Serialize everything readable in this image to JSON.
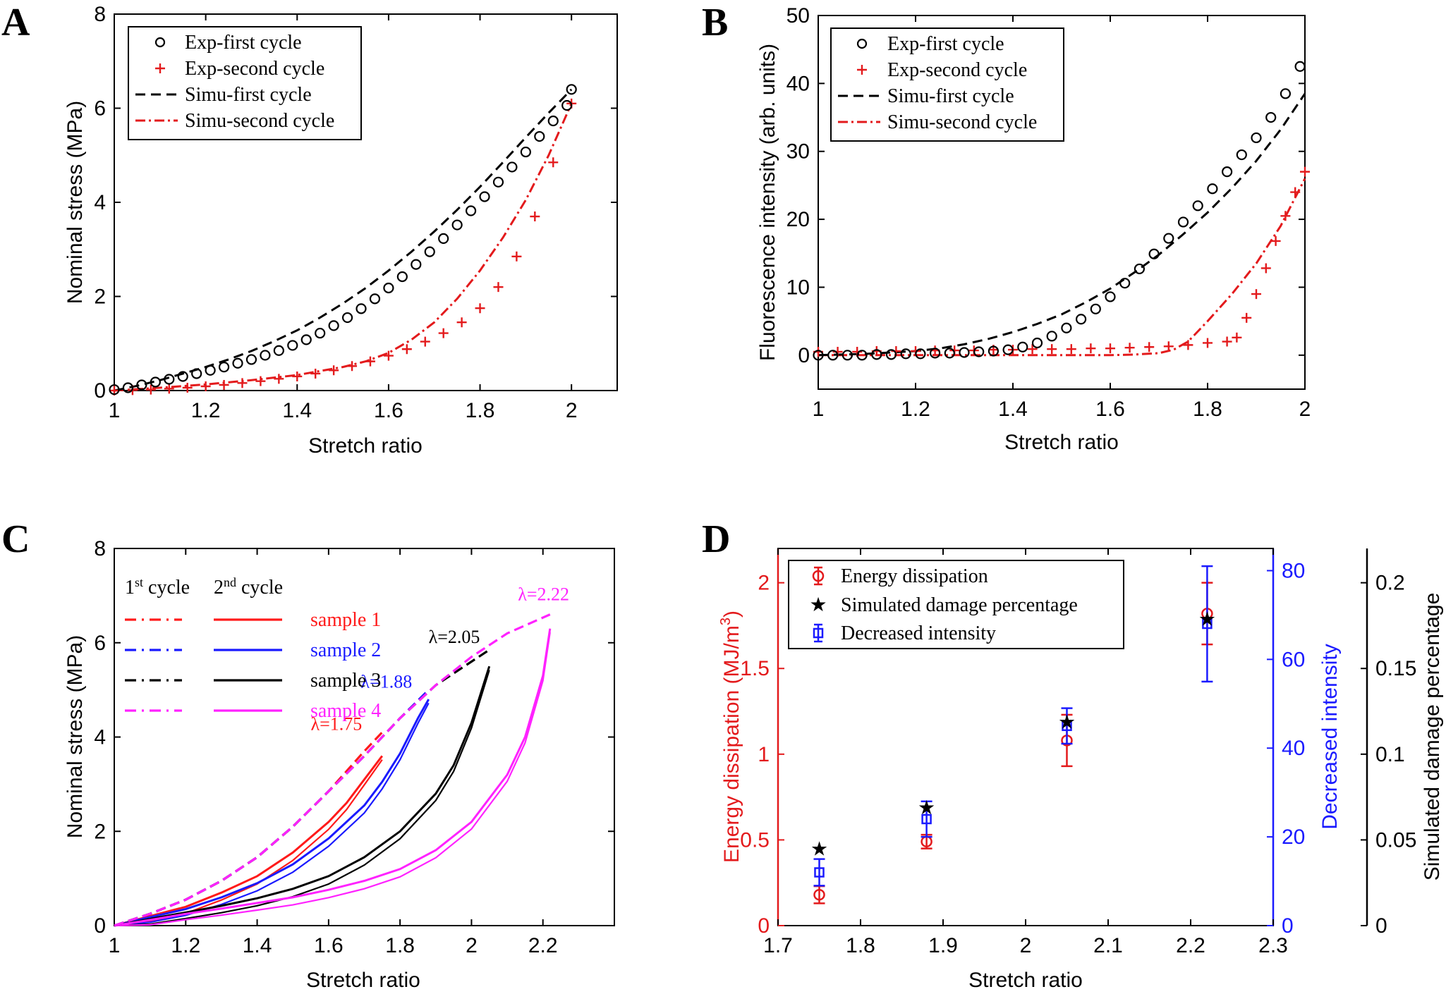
{
  "chart_data": [
    {
      "panel": "A",
      "type": "line",
      "xlabel": "Stretch ratio",
      "ylabel": "Nominal stress (MPa)",
      "xlim": [
        1,
        2.1
      ],
      "ylim": [
        0,
        8
      ],
      "xticks": [
        1,
        1.2,
        1.4,
        1.6,
        1.8,
        2
      ],
      "yticks": [
        0,
        2,
        4,
        6,
        8
      ],
      "xtick_labels": [
        "1",
        "1.2",
        "1.4",
        "1.6",
        "1.8",
        "2"
      ],
      "ytick_labels": [
        "0",
        "2",
        "4",
        "6",
        "8"
      ],
      "legend": [
        "Exp-first cycle",
        "Exp-second cycle",
        "Simu-first cycle",
        "Simu-second cycle"
      ],
      "series": [
        {
          "name": "Exp-first cycle",
          "style": "circle",
          "color": "#000000",
          "x": [
            1.0,
            1.03,
            1.06,
            1.09,
            1.12,
            1.15,
            1.18,
            1.21,
            1.24,
            1.27,
            1.3,
            1.33,
            1.36,
            1.39,
            1.42,
            1.45,
            1.48,
            1.51,
            1.54,
            1.57,
            1.6,
            1.63,
            1.66,
            1.69,
            1.72,
            1.75,
            1.78,
            1.81,
            1.84,
            1.87,
            1.9,
            1.93,
            1.96,
            1.99,
            2.0
          ],
          "y": [
            0.02,
            0.06,
            0.12,
            0.18,
            0.24,
            0.3,
            0.36,
            0.43,
            0.5,
            0.58,
            0.66,
            0.75,
            0.85,
            0.96,
            1.08,
            1.22,
            1.38,
            1.55,
            1.74,
            1.95,
            2.18,
            2.42,
            2.68,
            2.95,
            3.23,
            3.52,
            3.82,
            4.12,
            4.43,
            4.75,
            5.07,
            5.4,
            5.73,
            6.06,
            6.4
          ]
        },
        {
          "name": "Exp-second cycle",
          "style": "plus",
          "color": "#e31a1c",
          "x": [
            1.0,
            1.04,
            1.08,
            1.12,
            1.16,
            1.2,
            1.24,
            1.28,
            1.32,
            1.36,
            1.4,
            1.44,
            1.48,
            1.52,
            1.56,
            1.6,
            1.64,
            1.68,
            1.72,
            1.76,
            1.8,
            1.84,
            1.88,
            1.92,
            1.96,
            2.0
          ],
          "y": [
            0.0,
            0.01,
            0.02,
            0.04,
            0.06,
            0.09,
            0.12,
            0.16,
            0.2,
            0.25,
            0.3,
            0.36,
            0.43,
            0.52,
            0.62,
            0.74,
            0.88,
            1.04,
            1.22,
            1.45,
            1.75,
            2.2,
            2.85,
            3.7,
            4.85,
            6.1
          ]
        },
        {
          "name": "Simu-first cycle",
          "style": "dash",
          "color": "#000000",
          "x": [
            1.0,
            1.05,
            1.1,
            1.15,
            1.2,
            1.25,
            1.3,
            1.35,
            1.4,
            1.45,
            1.5,
            1.55,
            1.6,
            1.65,
            1.7,
            1.75,
            1.8,
            1.85,
            1.9,
            1.95,
            2.0
          ],
          "y": [
            0.0,
            0.1,
            0.22,
            0.36,
            0.5,
            0.66,
            0.84,
            1.05,
            1.28,
            1.55,
            1.85,
            2.18,
            2.55,
            2.95,
            3.38,
            3.84,
            4.33,
            4.85,
            5.38,
            5.9,
            6.4
          ]
        },
        {
          "name": "Simu-second cycle",
          "style": "dashdot",
          "color": "#e31a1c",
          "x": [
            1.0,
            1.1,
            1.2,
            1.3,
            1.4,
            1.5,
            1.55,
            1.6,
            1.65,
            1.7,
            1.75,
            1.8,
            1.85,
            1.9,
            1.95,
            2.0
          ],
          "y": [
            0.0,
            0.06,
            0.13,
            0.22,
            0.33,
            0.5,
            0.62,
            0.8,
            1.08,
            1.45,
            1.95,
            2.55,
            3.25,
            4.05,
            5.0,
            6.1
          ]
        }
      ]
    },
    {
      "panel": "B",
      "type": "line",
      "xlabel": "Stretch ratio",
      "ylabel": "Fluorescence intensity (arb. units)",
      "xlim": [
        1,
        2
      ],
      "ylim": [
        -5,
        50
      ],
      "xticks": [
        1,
        1.2,
        1.4,
        1.6,
        1.8,
        2
      ],
      "yticks": [
        0,
        10,
        20,
        30,
        40,
        50
      ],
      "xtick_labels": [
        "1",
        "1.2",
        "1.4",
        "1.6",
        "1.8",
        "2"
      ],
      "ytick_labels": [
        "0",
        "10",
        "20",
        "30",
        "40",
        "50"
      ],
      "legend": [
        "Exp-first cycle",
        "Exp-second cycle",
        "Simu-first cycle",
        "Simu-second cycle"
      ],
      "series": [
        {
          "name": "Exp-first cycle",
          "style": "circle",
          "color": "#000000",
          "x": [
            1.0,
            1.03,
            1.06,
            1.09,
            1.12,
            1.15,
            1.18,
            1.21,
            1.24,
            1.27,
            1.3,
            1.33,
            1.36,
            1.39,
            1.42,
            1.45,
            1.48,
            1.51,
            1.54,
            1.57,
            1.6,
            1.63,
            1.66,
            1.69,
            1.72,
            1.75,
            1.78,
            1.81,
            1.84,
            1.87,
            1.9,
            1.93,
            1.96,
            1.99
          ],
          "y": [
            0,
            0,
            0,
            0,
            0.1,
            0.1,
            0.2,
            0.2,
            0.3,
            0.3,
            0.4,
            0.5,
            0.6,
            0.8,
            1.2,
            1.8,
            2.8,
            4.0,
            5.3,
            6.8,
            8.6,
            10.6,
            12.7,
            14.9,
            17.2,
            19.6,
            22.0,
            24.5,
            27.0,
            29.5,
            32.0,
            35.0,
            38.5,
            42.5
          ]
        },
        {
          "name": "Exp-second cycle",
          "style": "plus",
          "color": "#e31a1c",
          "x": [
            1.0,
            1.04,
            1.08,
            1.12,
            1.16,
            1.2,
            1.24,
            1.28,
            1.32,
            1.36,
            1.4,
            1.44,
            1.48,
            1.52,
            1.56,
            1.6,
            1.64,
            1.68,
            1.72,
            1.76,
            1.8,
            1.84,
            1.86,
            1.88,
            1.9,
            1.92,
            1.94,
            1.96,
            1.98,
            2.0
          ],
          "y": [
            0.5,
            0.5,
            0.5,
            0.6,
            0.6,
            0.6,
            0.7,
            0.7,
            0.7,
            0.8,
            0.8,
            0.9,
            0.9,
            0.9,
            1.0,
            1.0,
            1.1,
            1.2,
            1.3,
            1.5,
            1.8,
            2.0,
            2.6,
            5.5,
            9.0,
            12.8,
            16.8,
            20.5,
            24.0,
            27.0
          ]
        },
        {
          "name": "Simu-first cycle",
          "style": "dash",
          "color": "#000000",
          "x": [
            1.0,
            1.1,
            1.2,
            1.25,
            1.3,
            1.35,
            1.4,
            1.45,
            1.5,
            1.55,
            1.6,
            1.65,
            1.7,
            1.75,
            1.8,
            1.85,
            1.9,
            1.95,
            2.0
          ],
          "y": [
            0,
            0.2,
            0.6,
            1.0,
            1.6,
            2.4,
            3.4,
            4.6,
            6.0,
            7.8,
            9.8,
            12.2,
            14.8,
            17.8,
            21.0,
            24.6,
            28.6,
            33.2,
            38.5
          ]
        },
        {
          "name": "Simu-second cycle",
          "style": "dashdot",
          "color": "#e31a1c",
          "x": [
            1.0,
            1.2,
            1.4,
            1.6,
            1.65,
            1.7,
            1.73,
            1.76,
            1.8,
            1.85,
            1.9,
            1.95,
            2.0
          ],
          "y": [
            0,
            0,
            0,
            0,
            0.1,
            0.3,
            0.8,
            2.0,
            5.0,
            9.0,
            13.5,
            19.0,
            26.0
          ]
        }
      ]
    },
    {
      "panel": "C",
      "type": "line",
      "xlabel": "Stretch ratio",
      "ylabel": "Nominal stress (MPa)",
      "xlim": [
        1,
        2.4
      ],
      "ylim": [
        0,
        8
      ],
      "xticks": [
        1,
        1.2,
        1.4,
        1.6,
        1.8,
        2,
        2.2
      ],
      "yticks": [
        0,
        2,
        4,
        6,
        8
      ],
      "xtick_labels": [
        "1",
        "1.2",
        "1.4",
        "1.6",
        "1.8",
        "2",
        "2.2"
      ],
      "ytick_labels": [
        "0",
        "2",
        "4",
        "6",
        "8"
      ],
      "legend_header": {
        "first": "1st cycle",
        "second": "2nd cycle"
      },
      "legend_header_parts": {
        "first_base": "1",
        "first_sup": "st",
        "first_rest": " cycle",
        "second_base": "2",
        "second_sup": "nd",
        "second_rest": " cycle"
      },
      "samples": [
        {
          "name": "sample 1",
          "color": "#ff1a1a",
          "lambda_label": "λ=1.75",
          "lambda": 1.75
        },
        {
          "name": "sample 2",
          "color": "#1a1aff",
          "lambda_label": "λ=1.88",
          "lambda": 1.88
        },
        {
          "name": "sample 3",
          "color": "#000000",
          "lambda_label": "λ=2.05",
          "lambda": 2.05
        },
        {
          "name": "sample 4",
          "color": "#ff22ff",
          "lambda_label": "λ=2.22",
          "lambda": 2.22
        }
      ],
      "first_cycle": [
        {
          "sample": "sample 1",
          "x": [
            1.0,
            1.1,
            1.2,
            1.3,
            1.4,
            1.5,
            1.6,
            1.7,
            1.75
          ],
          "y": [
            0,
            0.25,
            0.55,
            0.95,
            1.45,
            2.1,
            2.85,
            3.7,
            4.1
          ]
        },
        {
          "sample": "sample 2",
          "x": [
            1.0,
            1.1,
            1.2,
            1.3,
            1.4,
            1.5,
            1.6,
            1.7,
            1.8,
            1.88
          ],
          "y": [
            0,
            0.25,
            0.55,
            0.95,
            1.45,
            2.1,
            2.85,
            3.6,
            4.4,
            5.0
          ]
        },
        {
          "sample": "sample 3",
          "x": [
            1.0,
            1.1,
            1.2,
            1.3,
            1.4,
            1.5,
            1.6,
            1.7,
            1.8,
            1.9,
            2.0,
            2.05
          ],
          "y": [
            0,
            0.25,
            0.55,
            0.95,
            1.45,
            2.1,
            2.85,
            3.6,
            4.4,
            5.1,
            5.6,
            5.85
          ]
        },
        {
          "sample": "sample 4",
          "x": [
            1.0,
            1.1,
            1.2,
            1.3,
            1.4,
            1.5,
            1.6,
            1.7,
            1.8,
            1.9,
            2.0,
            2.1,
            2.22
          ],
          "y": [
            0,
            0.25,
            0.55,
            0.95,
            1.45,
            2.1,
            2.85,
            3.6,
            4.4,
            5.1,
            5.7,
            6.2,
            6.6
          ]
        }
      ],
      "second_cycle": [
        {
          "sample": "sample 1",
          "x": [
            1.0,
            1.1,
            1.2,
            1.3,
            1.4,
            1.5,
            1.6,
            1.65,
            1.7,
            1.75
          ],
          "y": [
            0,
            0.2,
            0.4,
            0.7,
            1.05,
            1.55,
            2.2,
            2.6,
            3.1,
            3.6
          ]
        },
        {
          "sample": "sample 2",
          "x": [
            1.0,
            1.1,
            1.2,
            1.3,
            1.4,
            1.5,
            1.6,
            1.7,
            1.75,
            1.8,
            1.85,
            1.88
          ],
          "y": [
            0,
            0.18,
            0.35,
            0.6,
            0.9,
            1.3,
            1.85,
            2.55,
            3.05,
            3.65,
            4.4,
            4.8
          ]
        },
        {
          "sample": "sample 3",
          "x": [
            1.0,
            1.1,
            1.2,
            1.3,
            1.4,
            1.5,
            1.6,
            1.7,
            1.8,
            1.9,
            1.95,
            2.0,
            2.05
          ],
          "y": [
            0,
            0.14,
            0.28,
            0.42,
            0.58,
            0.78,
            1.05,
            1.45,
            2.0,
            2.8,
            3.4,
            4.3,
            5.5
          ]
        },
        {
          "sample": "sample 4",
          "x": [
            1.0,
            1.1,
            1.2,
            1.3,
            1.4,
            1.5,
            1.6,
            1.7,
            1.8,
            1.9,
            2.0,
            2.1,
            2.15,
            2.2,
            2.22
          ],
          "y": [
            0,
            0.12,
            0.25,
            0.36,
            0.48,
            0.6,
            0.76,
            0.95,
            1.2,
            1.6,
            2.2,
            3.2,
            4.0,
            5.3,
            6.3
          ]
        }
      ]
    },
    {
      "panel": "D",
      "type": "scatter",
      "xlabel": "Stretch ratio",
      "ylabel_left": "Energy dissipation (MJ/m",
      "ylabel_left_sup": "3",
      "ylabel_left_close": ")",
      "ylabel_right1": "Decreased intensity",
      "ylabel_right2": "Simulated damage percentage",
      "xlim": [
        1.7,
        2.3
      ],
      "ylim_left": [
        0,
        2.2
      ],
      "ylim_right1": [
        0,
        85
      ],
      "ylim_right2": [
        0,
        0.22
      ],
      "xticks": [
        1.7,
        1.8,
        1.9,
        2,
        2.1,
        2.2,
        2.3
      ],
      "xtick_labels": [
        "1.7",
        "1.8",
        "1.9",
        "2",
        "2.1",
        "2.2",
        "2.3"
      ],
      "yticks_left": [
        0,
        0.5,
        1,
        1.5,
        2
      ],
      "ytick_labels_left": [
        "0",
        "0.5",
        "1",
        "1.5",
        "2"
      ],
      "yticks_right1": [
        0,
        20,
        40,
        60,
        80
      ],
      "ytick_labels_right1": [
        "0",
        "20",
        "40",
        "60",
        "80"
      ],
      "yticks_right2": [
        0,
        0.05,
        0.1,
        0.15,
        0.2
      ],
      "ytick_labels_right2": [
        "0",
        "0.05",
        "0.1",
        "0.15",
        "0.2"
      ],
      "legend": [
        "Energy dissipation",
        "Simulated damage percentage",
        "Decreased intensity"
      ],
      "x": [
        1.75,
        1.88,
        2.05,
        2.22
      ],
      "energy_dissipation": {
        "values": [
          0.18,
          0.49,
          1.08,
          1.82
        ],
        "errors": [
          0.05,
          0.04,
          0.15,
          0.18
        ]
      },
      "simulated_damage": {
        "values": [
          0.045,
          0.069,
          0.119,
          0.179
        ]
      },
      "decreased_intensity": {
        "values": [
          12,
          24,
          45,
          68
        ],
        "errors": [
          3,
          4,
          4,
          13
        ]
      }
    }
  ],
  "panel_labels": [
    "A",
    "B",
    "C",
    "D"
  ],
  "colors": {
    "red": "#e31a1c",
    "blue": "#1a1aff",
    "black": "#000000",
    "magenta": "#ff22ff"
  }
}
